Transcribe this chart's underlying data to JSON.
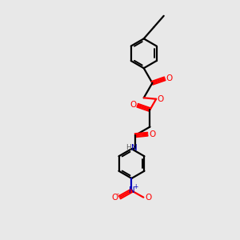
{
  "background_color": "#e8e8e8",
  "bond_color": "#000000",
  "oxygen_color": "#ff0000",
  "nitrogen_color": "#0000bb",
  "hydrogen_color": "#606060",
  "line_width": 1.6,
  "fig_size": [
    3.0,
    3.0
  ],
  "dpi": 100,
  "xlim": [
    0,
    10
  ],
  "ylim": [
    0,
    10
  ]
}
